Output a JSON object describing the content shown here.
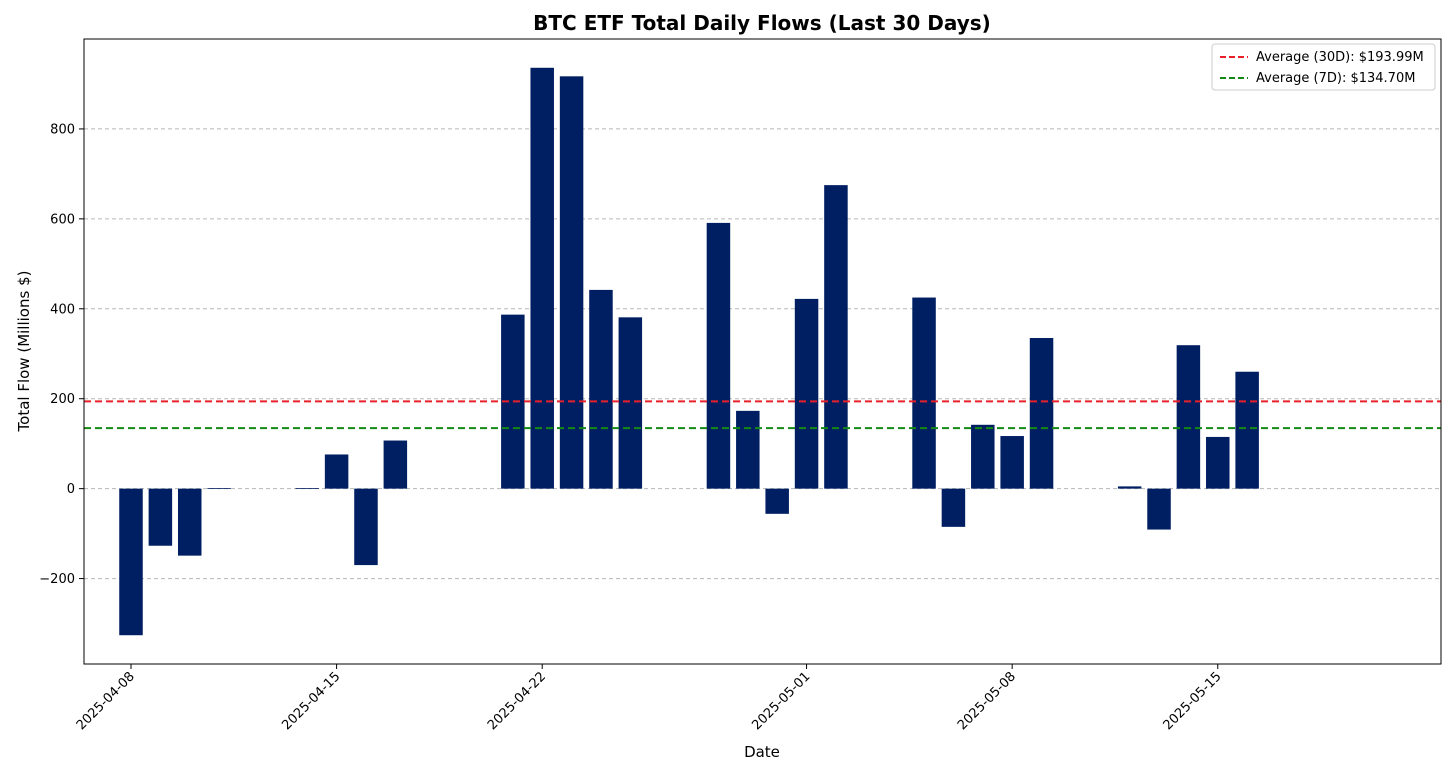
{
  "chart_data": {
    "type": "bar",
    "title": "BTC ETF Total Daily Flows (Last 30 Days)",
    "xlabel": "Date",
    "ylabel": "Total Flow (Millions $)",
    "ylim": [
      -390,
      1000
    ],
    "yticks": [
      -200,
      0,
      200,
      400,
      600,
      800
    ],
    "ytick_labels": [
      "−200",
      "0",
      "200",
      "400",
      "600",
      "800"
    ],
    "xlim_days": [
      -1.6,
      44.6
    ],
    "xticks": [
      {
        "day": 0,
        "label": "2025-04-08"
      },
      {
        "day": 7,
        "label": "2025-04-15"
      },
      {
        "day": 14,
        "label": "2025-04-22"
      },
      {
        "day": 23,
        "label": "2025-05-01"
      },
      {
        "day": 30,
        "label": "2025-05-08"
      },
      {
        "day": 37,
        "label": "2025-05-15"
      }
    ],
    "grid": "y-dashed",
    "bar_color": "#001f63",
    "bars": [
      {
        "date": "2025-04-08",
        "day": 0,
        "value": -326
      },
      {
        "date": "2025-04-09",
        "day": 1,
        "value": -127
      },
      {
        "date": "2025-04-10",
        "day": 2,
        "value": -149
      },
      {
        "date": "2025-04-11",
        "day": 3,
        "value": 1
      },
      {
        "date": "2025-04-14",
        "day": 6,
        "value": 1
      },
      {
        "date": "2025-04-15",
        "day": 7,
        "value": 76
      },
      {
        "date": "2025-04-16",
        "day": 8,
        "value": -170
      },
      {
        "date": "2025-04-17",
        "day": 9,
        "value": 107
      },
      {
        "date": "2025-04-21",
        "day": 13,
        "value": 387
      },
      {
        "date": "2025-04-22",
        "day": 14,
        "value": 936
      },
      {
        "date": "2025-04-23",
        "day": 15,
        "value": 917
      },
      {
        "date": "2025-04-24",
        "day": 16,
        "value": 442
      },
      {
        "date": "2025-04-25",
        "day": 17,
        "value": 381
      },
      {
        "date": "2025-04-28",
        "day": 20,
        "value": 591
      },
      {
        "date": "2025-04-29",
        "day": 21,
        "value": 173
      },
      {
        "date": "2025-04-30",
        "day": 22,
        "value": -56
      },
      {
        "date": "2025-05-01",
        "day": 23,
        "value": 422
      },
      {
        "date": "2025-05-02",
        "day": 24,
        "value": 675
      },
      {
        "date": "2025-05-05",
        "day": 27,
        "value": 425
      },
      {
        "date": "2025-05-06",
        "day": 28,
        "value": -85
      },
      {
        "date": "2025-05-07",
        "day": 29,
        "value": 142
      },
      {
        "date": "2025-05-08",
        "day": 30,
        "value": 117
      },
      {
        "date": "2025-05-09",
        "day": 31,
        "value": 335
      },
      {
        "date": "2025-05-12",
        "day": 34,
        "value": 5
      },
      {
        "date": "2025-05-13",
        "day": 35,
        "value": -91
      },
      {
        "date": "2025-05-14",
        "day": 36,
        "value": 319
      },
      {
        "date": "2025-05-15",
        "day": 37,
        "value": 115
      },
      {
        "date": "2025-05-16",
        "day": 38,
        "value": 260
      }
    ],
    "lines": [
      {
        "name": "Average (30D): $193.99M",
        "value": 193.99,
        "color": "#e8202a",
        "style": "dashed"
      },
      {
        "name": "Average (7D): $134.70M",
        "value": 134.7,
        "color": "#138a13",
        "style": "dashed"
      }
    ],
    "legend_position": "top-right"
  }
}
